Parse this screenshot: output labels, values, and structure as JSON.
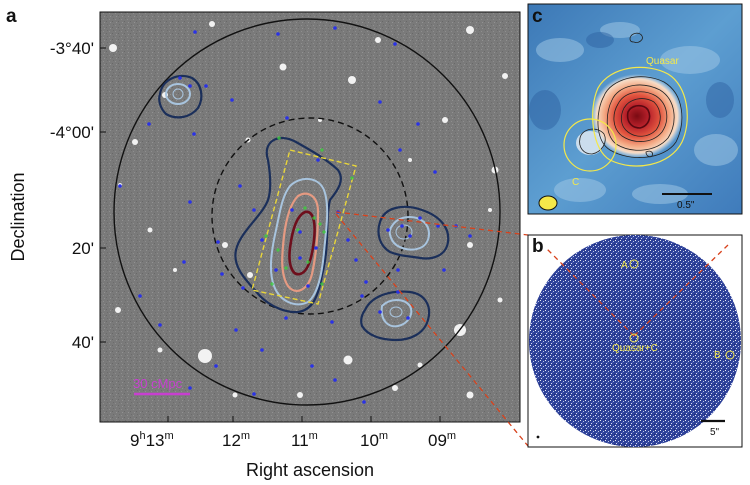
{
  "panel_a": {
    "letter": "a",
    "y_ticks": [
      "-3°40'",
      "-4°00'",
      "20'",
      "40'"
    ],
    "x_ticks": [
      {
        "base": "9",
        "sup": "h",
        "rest": "13",
        "sup2": "m"
      },
      {
        "base": "12",
        "sup": "m"
      },
      {
        "base": "11",
        "sup": "m"
      },
      {
        "base": "10",
        "sup": "m"
      },
      {
        "base": "09",
        "sup": "m"
      }
    ],
    "xlabel": "Right ascension",
    "ylabel": "Declination",
    "scale_bar": "30 cMpc"
  },
  "panel_b": {
    "letter": "b",
    "labels": {
      "a": "A",
      "b": "B",
      "quasar": "Quasar+C"
    },
    "scale_bar": "5\""
  },
  "panel_c": {
    "letter": "c",
    "labels": {
      "quasar": "Quasar",
      "c": "C"
    },
    "scale_bar": "0.5\""
  },
  "colors": {
    "sky_bg": "#7a7a7a",
    "contour_navy": "#1b2f5a",
    "contour_light_blue": "#a8c4de",
    "contour_salmon": "#e59a82",
    "contour_maroon": "#6e0f1c",
    "galaxy_dot": "#2a32e6",
    "green_marker": "#3bd13b",
    "yellow_box": "#e8d53a",
    "connector_red": "#d8421c",
    "panel_b_bg": "#2d3f95",
    "scale_magenta": "#c73fd0"
  }
}
